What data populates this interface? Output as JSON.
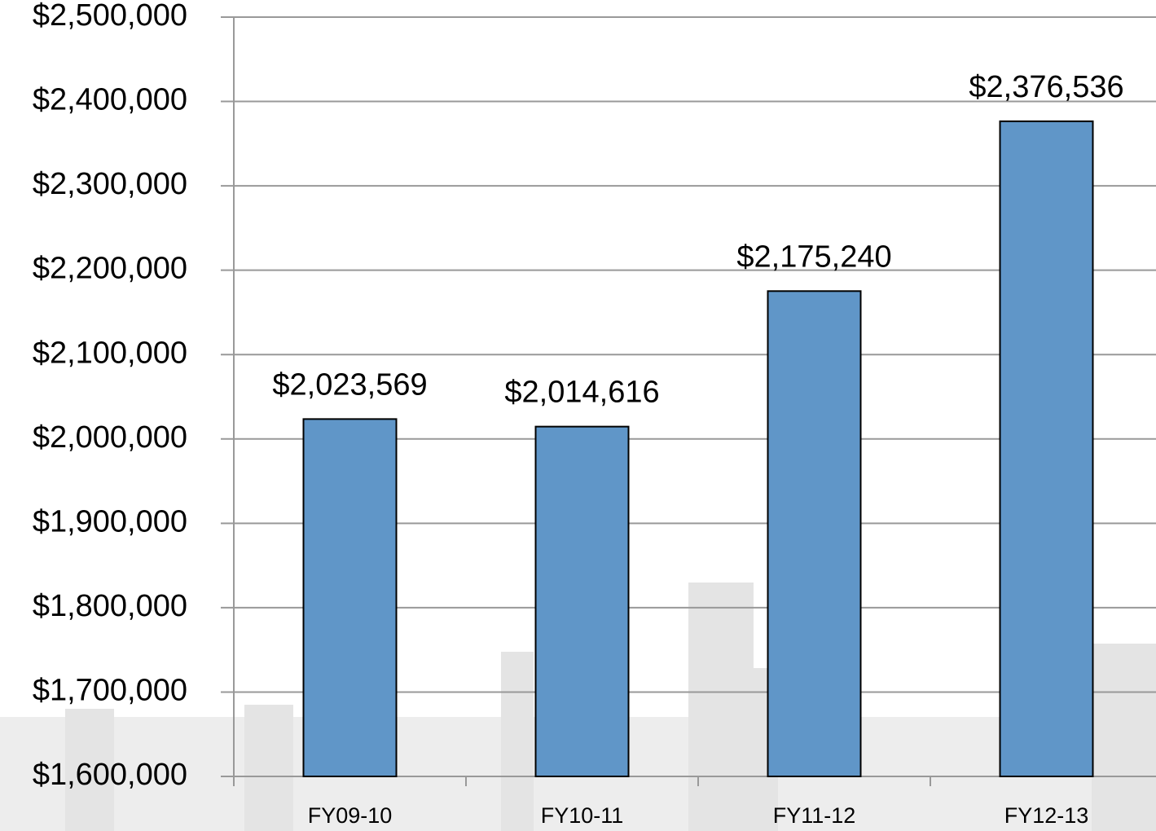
{
  "chart_data": {
    "type": "bar",
    "categories": [
      "FY09-10",
      "FY10-11",
      "FY11-12",
      "FY12-13"
    ],
    "values": [
      2023569,
      2014616,
      2175240,
      2376536
    ],
    "value_labels": [
      "$2,023,569",
      "$2,014,616",
      "$2,175,240",
      "$2,376,536"
    ],
    "color": "#6096c8",
    "ylim": [
      1600000,
      2500000
    ],
    "yticks": [
      {
        "value": 1600000,
        "label": "$1,600,000"
      },
      {
        "value": 1700000,
        "label": "$1,700,000"
      },
      {
        "value": 1800000,
        "label": "$1,800,000"
      },
      {
        "value": 1900000,
        "label": "$1,900,000"
      },
      {
        "value": 2000000,
        "label": "$2,000,000"
      },
      {
        "value": 2100000,
        "label": "$2,100,000"
      },
      {
        "value": 2200000,
        "label": "$2,200,000"
      },
      {
        "value": 2300000,
        "label": "$2,300,000"
      },
      {
        "value": 2400000,
        "label": "$2,400,000"
      },
      {
        "value": 2500000,
        "label": "$2,500,000"
      }
    ],
    "grid": true
  }
}
